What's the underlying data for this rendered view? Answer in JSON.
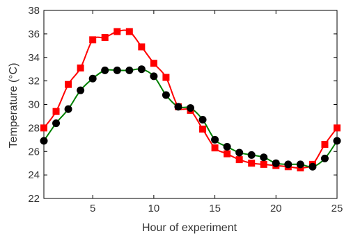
{
  "chart_data": {
    "type": "line",
    "xlabel": "Hour of experiment",
    "ylabel": "Temperature (°C)",
    "xlim": [
      1,
      25
    ],
    "ylim": [
      22,
      38
    ],
    "x_ticks": [
      5,
      10,
      15,
      20,
      25
    ],
    "y_ticks": [
      22,
      24,
      26,
      28,
      30,
      32,
      34,
      36,
      38
    ],
    "grid": false,
    "x": [
      1,
      2,
      3,
      4,
      5,
      6,
      7,
      8,
      9,
      10,
      11,
      12,
      13,
      14,
      15,
      16,
      17,
      18,
      19,
      20,
      21,
      22,
      23,
      24,
      25
    ],
    "series": [
      {
        "color": "#ff0000",
        "marker": "square",
        "values": [
          28.0,
          29.4,
          31.7,
          33.1,
          35.5,
          35.7,
          36.2,
          36.2,
          34.9,
          33.5,
          32.3,
          29.8,
          29.5,
          27.9,
          26.3,
          25.8,
          25.3,
          25.0,
          24.9,
          24.8,
          24.7,
          24.6,
          24.9,
          26.6,
          28.0
        ]
      },
      {
        "color": "#000000",
        "line_color": "#008000",
        "marker": "circle",
        "values": [
          26.9,
          28.4,
          29.6,
          31.2,
          32.2,
          32.9,
          32.9,
          32.9,
          33.0,
          32.4,
          30.8,
          29.8,
          29.7,
          28.7,
          27.0,
          26.4,
          25.9,
          25.7,
          25.5,
          25.0,
          24.9,
          24.9,
          24.7,
          25.4,
          26.9
        ]
      }
    ]
  }
}
